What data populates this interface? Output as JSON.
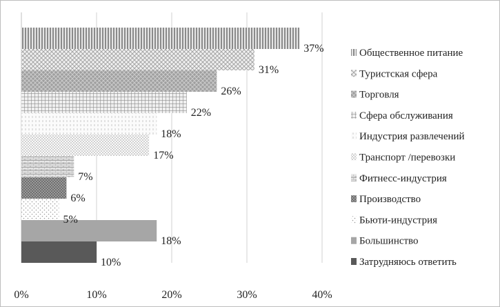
{
  "chart_data": {
    "type": "bar",
    "orientation": "horizontal",
    "title": "",
    "xlabel": "",
    "ylabel": "",
    "xlim": [
      0,
      40
    ],
    "x_ticks": [
      "0%",
      "10%",
      "20%",
      "30%",
      "40%"
    ],
    "grid": "vertical",
    "legend_position": "right",
    "series": [
      {
        "name": "Общественное питание",
        "value": 37,
        "label": "37%",
        "color": "#9a9a9a",
        "pattern": "vstripe"
      },
      {
        "name": "Туристская сфера",
        "value": 31,
        "label": "31%",
        "color": "#bdbdbd",
        "pattern": "cross"
      },
      {
        "name": "Торговля",
        "value": 26,
        "label": "26%",
        "color": "#8f8f8f",
        "pattern": "diamond"
      },
      {
        "name": "Сфера обслуживания",
        "value": 22,
        "label": "22%",
        "color": "#9c9c9c",
        "pattern": "grid"
      },
      {
        "name": "Индустрия развлечений",
        "value": 18,
        "label": "18%",
        "color": "#d9d9d9",
        "pattern": "vdash"
      },
      {
        "name": "Транспорт /перевозки",
        "value": 17,
        "label": "17%",
        "color": "#cfcfcf",
        "pattern": "dots"
      },
      {
        "name": "Фитнесс-индустрия",
        "value": 7,
        "label": "7%",
        "color": "#a8a8a8",
        "pattern": "brick"
      },
      {
        "name": "Производство",
        "value": 6,
        "label": "6%",
        "color": "#777777",
        "pattern": "check"
      },
      {
        "name": "Бьюти-индустрия",
        "value": 5,
        "label": "5%",
        "color": "#c8c8c8",
        "pattern": "sparse"
      },
      {
        "name": "Большинство",
        "value": 18,
        "label": "18%",
        "color": "#a6a6a6",
        "pattern": "solid"
      },
      {
        "name": "Затрудняюсь ответить",
        "value": 10,
        "label": "10%",
        "color": "#595959",
        "pattern": "solid"
      }
    ]
  }
}
